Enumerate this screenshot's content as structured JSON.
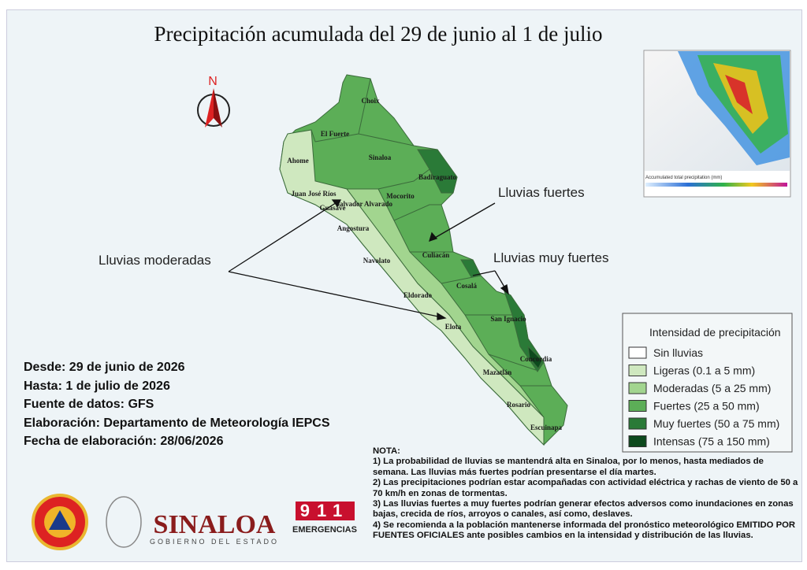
{
  "title": "Precipitación acumulada del 29 de junio al 1 de julio",
  "north": "N",
  "municipalities": [
    "Choix",
    "El Fuerte",
    "Ahome",
    "Sinaloa",
    "Badiraguato",
    "Juan José Ríos",
    "Guasave",
    "Salvador Alvarado",
    "Mocorito",
    "Angostura",
    "Navolato",
    "Culiacán",
    "Cosalá",
    "Eldorado",
    "Elota",
    "San Ignacio",
    "Concordia",
    "Mazatlán",
    "Rosario",
    "Escuinapa"
  ],
  "annotations": {
    "fuertes": "Lluvias fuertes",
    "muy_fuertes": "Lluvias muy fuertes",
    "moderadas": "Lluvias moderadas"
  },
  "inset": {
    "caption": "Accumulated total precipitation (mm)"
  },
  "legend": {
    "title": "Intensidad de precipitación",
    "items": [
      {
        "label": "Sin lluvias",
        "color": "#ffffff"
      },
      {
        "label": "Ligeras (0.1 a 5 mm)",
        "color": "#cfe8bf"
      },
      {
        "label": "Moderadas (5 a 25 mm)",
        "color": "#a2d58f"
      },
      {
        "label": "Fuertes (25 a 50 mm)",
        "color": "#5cae57"
      },
      {
        "label": "Muy fuertes (50 a 75 mm)",
        "color": "#2a7a37"
      },
      {
        "label": "Intensas (75 a 150 mm)",
        "color": "#0d4a1d"
      }
    ]
  },
  "info": [
    "Desde: 29 de junio de 2026",
    "Hasta: 1 de julio de 2026",
    "Fuente de datos: GFS",
    "Elaboración: Departamento de Meteorología IEPCS",
    "Fecha de elaboración: 28/06/2026"
  ],
  "note": {
    "heading": "NOTA:",
    "items": [
      "1) La probabilidad de lluvias se mantendrá alta en Sinaloa, por lo menos, hasta mediados de semana. Las lluvias más fuertes podrían presentarse el día martes.",
      "2) Las precipitaciones podrían estar acompañadas con actividad eléctrica y rachas de viento de 50 a 70 km/h en zonas de tormentas.",
      "3) Las lluvias fuertes a muy fuertes podrían generar efectos adversos como inundaciones en zonas bajas, crecida de ríos, arroyos o canales, así como, deslaves.",
      "4) Se recomienda a la población mantenerse informada del pronóstico meteorológico EMITIDO POR FUENTES OFICIALES ante posibles cambios en la intensidad y distribución de las lluvias."
    ]
  },
  "logos": {
    "state": "SINALOA",
    "government": "GOBIERNO DEL ESTADO",
    "emergency_number": "911",
    "emergency": "EMERGENCIAS"
  }
}
